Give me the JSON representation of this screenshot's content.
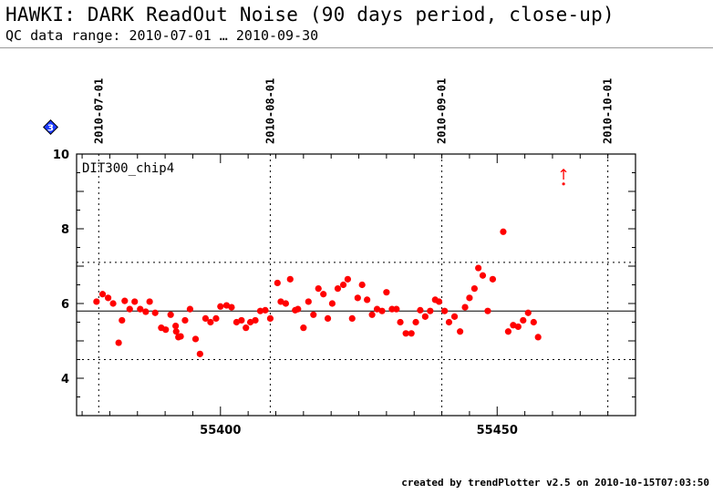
{
  "header": {
    "title": "HAWKI: DARK ReadOut Noise (90 days period, close-up)",
    "subtitle": "QC data range: 2010-07-01 … 2010-09-30"
  },
  "footer": {
    "text": "created by trendPlotter v2.5 on 2010-10-15T07:03:50"
  },
  "badge": {
    "label": "3",
    "color": "#1e3cff"
  },
  "chart_data": {
    "type": "scatter",
    "panel_label": "DIT300_chip4",
    "xlim": [
      55374,
      55475
    ],
    "ylim": [
      3,
      10
    ],
    "x_ticks": [
      55400,
      55450
    ],
    "y_ticks": [
      4,
      6,
      8,
      10
    ],
    "date_markers": [
      {
        "label": "2010-07-01",
        "x": 55378
      },
      {
        "label": "2010-08-01",
        "x": 55409
      },
      {
        "label": "2010-09-01",
        "x": 55440
      },
      {
        "label": "2010-10-01",
        "x": 55470
      }
    ],
    "reference_lines": {
      "median": 5.8,
      "upper": 7.1,
      "lower": 4.5
    },
    "point_color": "#ff0000",
    "outlier": {
      "x": 55462,
      "y": 9.2,
      "marker": "↑"
    },
    "points": [
      [
        55377.6,
        6.05
      ],
      [
        55378.7,
        6.25
      ],
      [
        55379.7,
        6.15
      ],
      [
        55380.6,
        6.0
      ],
      [
        55381.6,
        4.95
      ],
      [
        55382.2,
        5.55
      ],
      [
        55382.7,
        6.07
      ],
      [
        55383.6,
        5.85
      ],
      [
        55384.5,
        6.05
      ],
      [
        55385.5,
        5.85
      ],
      [
        55386.5,
        5.78
      ],
      [
        55387.2,
        6.05
      ],
      [
        55388.2,
        5.75
      ],
      [
        55389.3,
        5.35
      ],
      [
        55390.1,
        5.3
      ],
      [
        55391.0,
        5.7
      ],
      [
        55391.9,
        5.4
      ],
      [
        55392.0,
        5.25
      ],
      [
        55392.4,
        5.1
      ],
      [
        55392.8,
        5.12
      ],
      [
        55393.6,
        5.55
      ],
      [
        55394.5,
        5.85
      ],
      [
        55395.5,
        5.05
      ],
      [
        55396.3,
        4.65
      ],
      [
        55397.3,
        5.6
      ],
      [
        55398.2,
        5.5
      ],
      [
        55399.2,
        5.6
      ],
      [
        55400.0,
        5.92
      ],
      [
        55401.1,
        5.95
      ],
      [
        55402.0,
        5.9
      ],
      [
        55402.9,
        5.5
      ],
      [
        55403.8,
        5.55
      ],
      [
        55404.6,
        5.35
      ],
      [
        55405.4,
        5.5
      ],
      [
        55406.3,
        5.55
      ],
      [
        55407.2,
        5.8
      ],
      [
        55408.1,
        5.82
      ],
      [
        55409.0,
        5.6
      ],
      [
        55410.3,
        6.55
      ],
      [
        55410.9,
        6.05
      ],
      [
        55411.8,
        6.0
      ],
      [
        55412.6,
        6.65
      ],
      [
        55413.5,
        5.82
      ],
      [
        55414.0,
        5.85
      ],
      [
        55415.0,
        5.35
      ],
      [
        55415.9,
        6.05
      ],
      [
        55416.8,
        5.7
      ],
      [
        55417.7,
        6.4
      ],
      [
        55418.6,
        6.25
      ],
      [
        55419.4,
        5.6
      ],
      [
        55420.2,
        6.0
      ],
      [
        55421.2,
        6.4
      ],
      [
        55422.2,
        6.5
      ],
      [
        55423.0,
        6.65
      ],
      [
        55423.8,
        5.6
      ],
      [
        55424.8,
        6.15
      ],
      [
        55425.6,
        6.5
      ],
      [
        55426.5,
        6.1
      ],
      [
        55427.4,
        5.7
      ],
      [
        55428.3,
        5.85
      ],
      [
        55429.2,
        5.8
      ],
      [
        55430.0,
        6.3
      ],
      [
        55431.0,
        5.85
      ],
      [
        55431.8,
        5.85
      ],
      [
        55432.5,
        5.5
      ],
      [
        55433.5,
        5.2
      ],
      [
        55434.5,
        5.2
      ],
      [
        55435.3,
        5.5
      ],
      [
        55436.1,
        5.82
      ],
      [
        55437.0,
        5.65
      ],
      [
        55437.9,
        5.8
      ],
      [
        55438.8,
        6.1
      ],
      [
        55439.5,
        6.05
      ],
      [
        55440.5,
        5.8
      ],
      [
        55441.3,
        5.5
      ],
      [
        55442.3,
        5.65
      ],
      [
        55443.3,
        5.25
      ],
      [
        55444.2,
        5.9
      ],
      [
        55445.0,
        6.15
      ],
      [
        55445.9,
        6.4
      ],
      [
        55446.6,
        6.95
      ],
      [
        55447.4,
        6.75
      ],
      [
        55448.3,
        5.8
      ],
      [
        55449.2,
        6.65
      ],
      [
        55451.1,
        7.92
      ],
      [
        55452.0,
        5.25
      ],
      [
        55452.9,
        5.42
      ],
      [
        55453.8,
        5.38
      ],
      [
        55454.7,
        5.55
      ],
      [
        55455.6,
        5.75
      ],
      [
        55456.6,
        5.5
      ],
      [
        55457.4,
        5.1
      ]
    ]
  }
}
